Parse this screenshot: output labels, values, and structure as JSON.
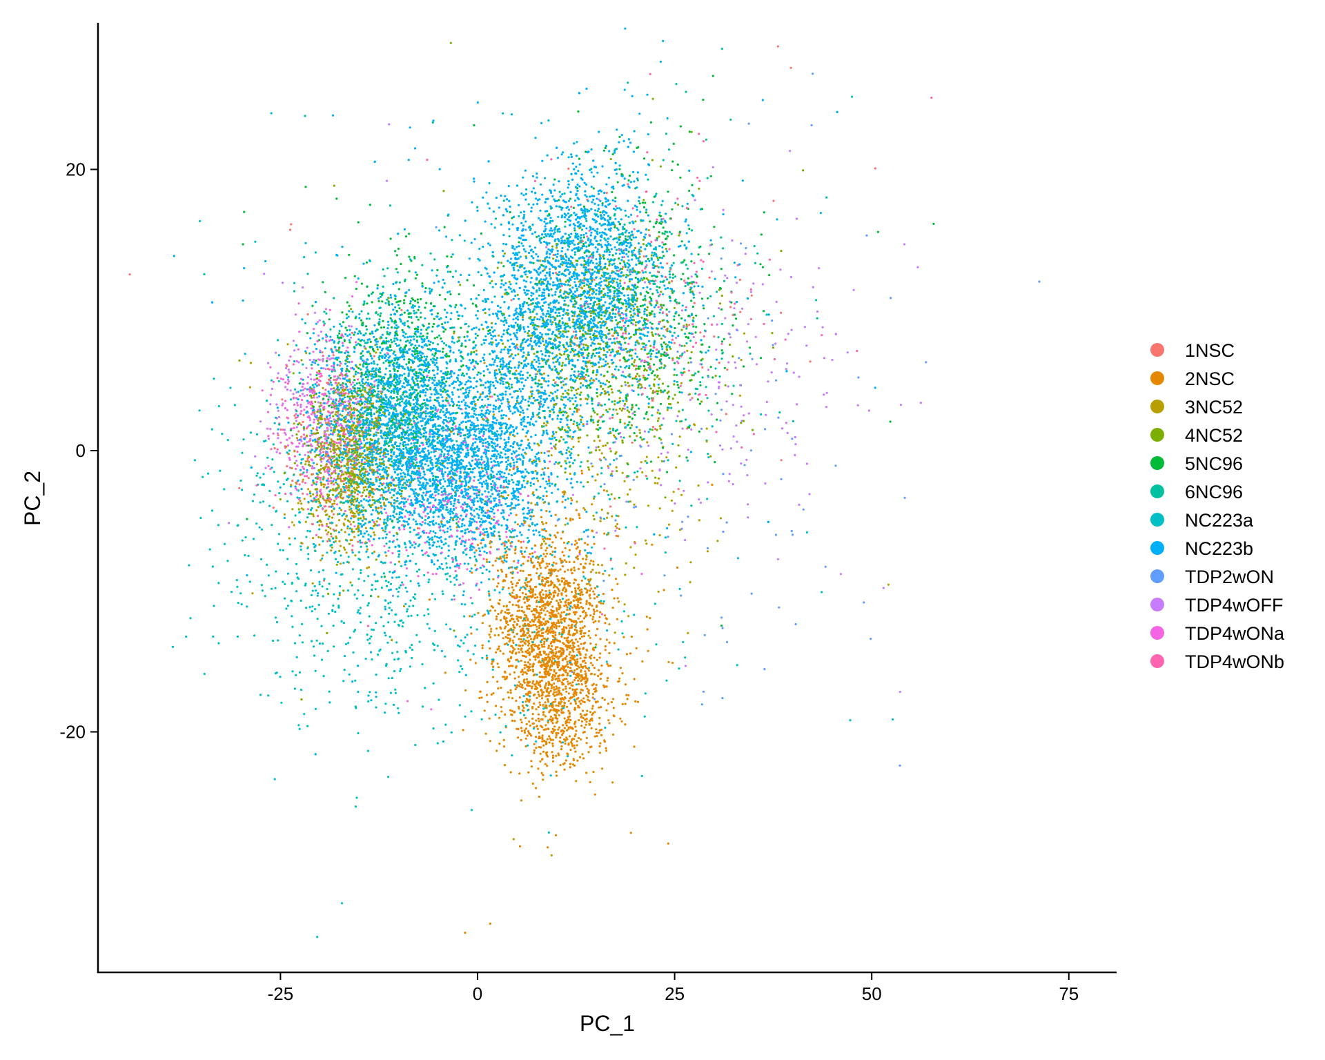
{
  "chart_data": {
    "type": "scatter",
    "title": "",
    "xlabel": "PC_1",
    "ylabel": "PC_2",
    "xlim": [
      -48,
      81
    ],
    "ylim": [
      -37,
      31
    ],
    "xticks": [
      -25,
      0,
      25,
      50,
      75
    ],
    "yticks": [
      -20,
      0,
      20
    ],
    "grid": false,
    "legend_position": "right",
    "series": [
      {
        "name": "1NSC",
        "color": "#F8766D",
        "clusters": [
          {
            "center": [
              -18,
              1
            ],
            "sd": [
              3,
              4
            ],
            "n": 150
          },
          {
            "center": [
              20,
              8
            ],
            "sd": [
              8,
              6
            ],
            "n": 80
          }
        ]
      },
      {
        "name": "2NSC",
        "color": "#E58700",
        "clusters": [
          {
            "center": [
              9,
              -13
            ],
            "sd": [
              3.5,
              3.5
            ],
            "n": 1600
          },
          {
            "center": [
              11,
              -18
            ],
            "sd": [
              3,
              2.5
            ],
            "n": 500
          }
        ]
      },
      {
        "name": "3NC52",
        "color": "#B79F00",
        "clusters": [
          {
            "center": [
              -17,
              -2
            ],
            "sd": [
              3,
              3
            ],
            "n": 500
          },
          {
            "center": [
              14,
              0
            ],
            "sd": [
              8,
              6
            ],
            "n": 300
          }
        ]
      },
      {
        "name": "4NC52",
        "color": "#7CAE00",
        "clusters": [
          {
            "center": [
              -16,
              0
            ],
            "sd": [
              3,
              3
            ],
            "n": 450
          },
          {
            "center": [
              16,
              7
            ],
            "sd": [
              6,
              4
            ],
            "n": 600
          }
        ]
      },
      {
        "name": "5NC96",
        "color": "#00BA38",
        "clusters": [
          {
            "center": [
              -10,
              6
            ],
            "sd": [
              5,
              4
            ],
            "n": 500
          },
          {
            "center": [
              19,
              10
            ],
            "sd": [
              7,
              5
            ],
            "n": 500
          }
        ]
      },
      {
        "name": "6NC96",
        "color": "#00C19F",
        "clusters": [
          {
            "center": [
              -11,
              4
            ],
            "sd": [
              5,
              4
            ],
            "n": 450
          },
          {
            "center": [
              18,
              9
            ],
            "sd": [
              7,
              5
            ],
            "n": 450
          }
        ]
      },
      {
        "name": "NC223a",
        "color": "#00BFC4",
        "clusters": [
          {
            "center": [
              -14,
              -6
            ],
            "sd": [
              9,
              7
            ],
            "n": 900
          },
          {
            "center": [
              5,
              -8
            ],
            "sd": [
              10,
              7
            ],
            "n": 300
          }
        ]
      },
      {
        "name": "NC223b",
        "color": "#00B0F6",
        "clusters": [
          {
            "center": [
              -10,
              2
            ],
            "sd": [
              5,
              4
            ],
            "n": 2400
          },
          {
            "center": [
              -1,
              -2
            ],
            "sd": [
              5,
              3
            ],
            "n": 1400
          },
          {
            "center": [
              13,
              12
            ],
            "sd": [
              5.5,
              4
            ],
            "n": 2600
          },
          {
            "center": [
              5,
              5
            ],
            "sd": [
              4,
              3
            ],
            "n": 600
          }
        ]
      },
      {
        "name": "TDP2wON",
        "color": "#619CFF",
        "clusters": [
          {
            "center": [
              25,
              0
            ],
            "sd": [
              14,
              10
            ],
            "n": 120
          }
        ]
      },
      {
        "name": "TDP4wOFF",
        "color": "#C77CFF",
        "clusters": [
          {
            "center": [
              -20,
              3
            ],
            "sd": [
              3,
              3
            ],
            "n": 200
          },
          {
            "center": [
              28,
              4
            ],
            "sd": [
              10,
              7
            ],
            "n": 200
          }
        ]
      },
      {
        "name": "TDP4wONa",
        "color": "#F564E3",
        "clusters": [
          {
            "center": [
              -20,
              2
            ],
            "sd": [
              3,
              3
            ],
            "n": 250
          },
          {
            "center": [
              -3,
              -4
            ],
            "sd": [
              5,
              3
            ],
            "n": 250
          }
        ]
      },
      {
        "name": "TDP4wONb",
        "color": "#FF64B0",
        "clusters": [
          {
            "center": [
              -19,
              1
            ],
            "sd": [
              3,
              3
            ],
            "n": 150
          },
          {
            "center": [
              22,
              10
            ],
            "sd": [
              6,
              5
            ],
            "n": 150
          }
        ]
      }
    ]
  }
}
